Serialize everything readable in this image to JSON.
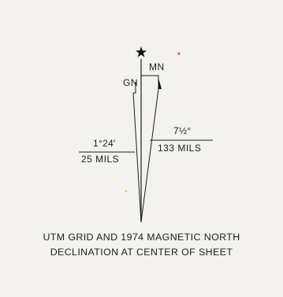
{
  "diagram": {
    "grid_north_label": "GN",
    "magnetic_north_label": "MN",
    "grid_declination_angle": "1°24′",
    "grid_declination_mils": "25 MILS",
    "magnetic_declination_angle": "7½°",
    "magnetic_declination_mils": "133 MILS",
    "true_north_symbol": "star-icon",
    "caption_line_1": "UTM GRID AND 1974 MAGNETIC NORTH",
    "caption_line_2": "DECLINATION AT CENTER OF SHEET"
  },
  "colors": {
    "ink": "#1d1d1d",
    "paper": "#f3f2ee",
    "speck_orange": "#e0683a",
    "speck_yellow": "#e7c447"
  }
}
